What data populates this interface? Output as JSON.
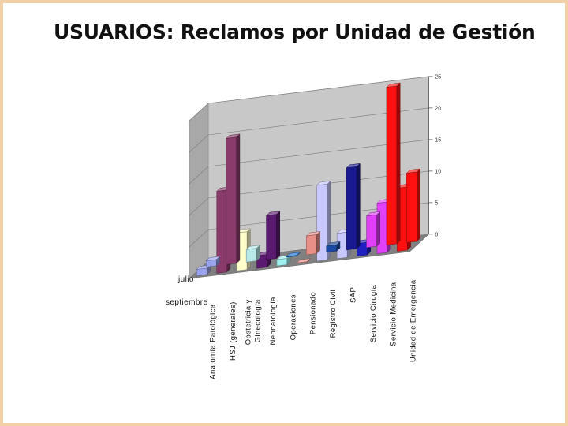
{
  "slide": {
    "title": "USUARIOS: Reclamos por Unidad de Gestión",
    "border_color": "#f3cfa6"
  },
  "chart_data": {
    "type": "bar",
    "title": "USUARIOS: Reclamos por Unidad de Gestión",
    "xlabel": "",
    "ylabel": "",
    "ylim": [
      0,
      25
    ],
    "yticks": [
      0,
      5,
      10,
      15,
      20,
      25
    ],
    "categories": [
      "Anatomía Patológica",
      "HSJ (generales)",
      "Obstetricia y Ginecología",
      "Neonatología",
      "Operaciones",
      "Pensionado",
      "Registro Civil",
      "SAP",
      "Servicio Cirugía",
      "Servicio Medicina",
      "Unidad de Emergencia"
    ],
    "series": [
      {
        "name": "julio",
        "values": [
          1,
          20,
          2,
          7,
          0,
          3,
          1,
          13,
          5,
          25,
          11
        ]
      },
      {
        "name": "septiembre",
        "values": [
          1,
          13,
          6,
          2,
          1,
          0,
          12,
          4,
          2,
          8,
          10
        ]
      }
    ],
    "colors": {
      "julio": [
        "#9aa4ee",
        "#8a3a6a",
        "#b8e8e8",
        "#5a1a70",
        "#1a70d8",
        "#e89088",
        "#1a4aa0",
        "#1a1a90",
        "#e040f8",
        "#ff1010",
        "#ff1010"
      ],
      "septiembre": [
        "#9aa4ee",
        "#8a3a6a",
        "#ffffcc",
        "#5a1a70",
        "#a0f0f0",
        "#e89088",
        "#c8c8ff",
        "#c8c8ff",
        "#2020c0",
        "#e040f8",
        "#ff1010"
      ]
    },
    "style": "3d-bar",
    "grid": true
  }
}
